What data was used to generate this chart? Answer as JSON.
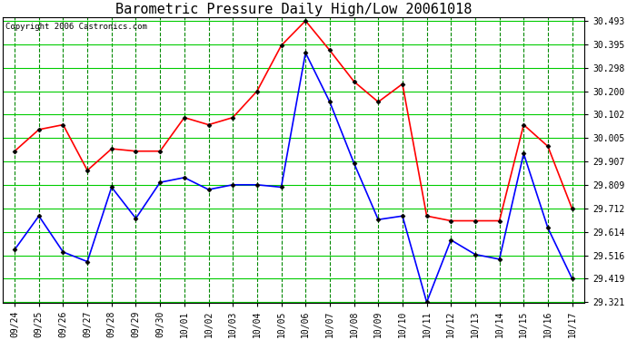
{
  "title": "Barometric Pressure Daily High/Low 20061018",
  "copyright": "Copyright 2006 Castronics.com",
  "background_color": "#ffffff",
  "plot_bg_color": "#ffffff",
  "grid_color_h": "#00cc00",
  "grid_color_v": "#008800",
  "x_labels": [
    "09/24",
    "09/25",
    "09/26",
    "09/27",
    "09/28",
    "09/29",
    "09/30",
    "10/01",
    "10/02",
    "10/03",
    "10/04",
    "10/05",
    "10/06",
    "10/07",
    "10/08",
    "10/09",
    "10/10",
    "10/11",
    "10/12",
    "10/13",
    "10/14",
    "10/15",
    "10/16",
    "10/17"
  ],
  "high_values": [
    29.95,
    30.04,
    30.06,
    29.87,
    29.96,
    29.95,
    29.95,
    30.09,
    30.06,
    30.09,
    30.2,
    30.39,
    30.493,
    30.37,
    30.24,
    30.155,
    30.23,
    29.68,
    29.66,
    29.66,
    29.66,
    30.06,
    29.97,
    29.71
  ],
  "low_values": [
    29.54,
    29.68,
    29.53,
    29.49,
    29.8,
    29.67,
    29.82,
    29.84,
    29.79,
    29.81,
    29.81,
    29.8,
    30.36,
    30.155,
    29.9,
    29.665,
    29.68,
    29.321,
    29.58,
    29.52,
    29.5,
    29.94,
    29.63,
    29.419
  ],
  "high_color": "#ff0000",
  "low_color": "#0000ff",
  "marker": "D",
  "marker_size": 2.5,
  "line_width": 1.2,
  "ylim_min": 29.321,
  "ylim_max": 30.493,
  "yticks": [
    30.493,
    30.395,
    30.298,
    30.2,
    30.102,
    30.005,
    29.907,
    29.809,
    29.712,
    29.614,
    29.516,
    29.419,
    29.321
  ],
  "title_fontsize": 11,
  "tick_fontsize": 7,
  "copyright_fontsize": 6.5,
  "fig_width": 6.9,
  "fig_height": 3.75,
  "dpi": 100
}
